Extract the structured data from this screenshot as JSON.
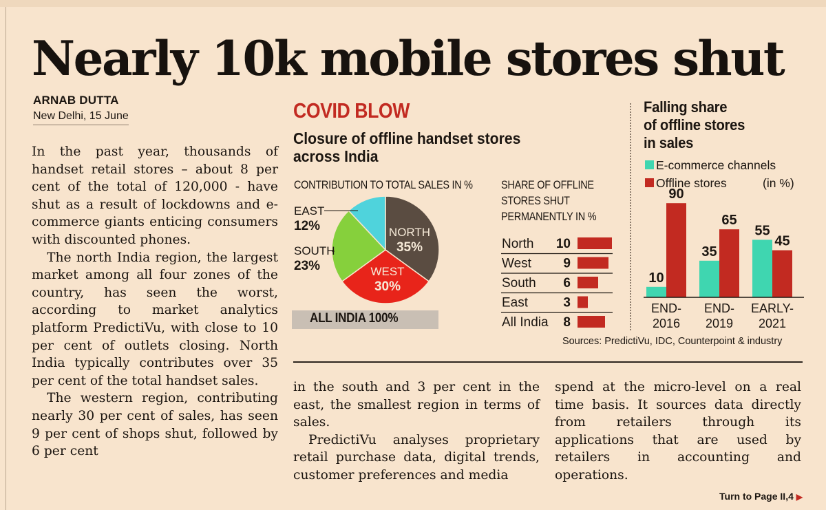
{
  "headline": "Nearly 10k mobile stores shut",
  "byline": {
    "author": "ARNAB DUTTA",
    "dateline": "New Delhi, 15 June"
  },
  "body": {
    "col1": [
      "In the past year, thousands of handset retail stores – about 8 per cent of the total of 120,000 - have shut as a result of  lockdowns and e-commerce giants enticing consumers with discounted phones.",
      "The north India region, the largest market among all four zones of the country, has seen the worst, according to market analytics platform PredictiVu, with close to 10 per cent of outlets closing. North India typically contributes over 35 per cent of the total handset sales.",
      "The western region, contributing nearly 30 per cent of sales, has seen 9 per cent of shops shut, followed by 6 per cent"
    ],
    "col2": [
      "in the south and 3 per cent in the east, the smallest region in terms of sales.",
      "PredictiVu analyses proprietary retail purchase data, digital trends, customer preferences and media"
    ],
    "col3": [
      "spend at the micro-level on a real time basis. It sources data directly from retailers through its applications that are used by retailers in accounting and operations."
    ],
    "turn": "Turn to Page II,4"
  },
  "graphic": {
    "title": "COVID BLOW",
    "subtitle": "Closure of offline handset stores across India",
    "pie_heading": "CONTRIBUTION TO TOTAL SALES IN %",
    "total_label": "ALL INDIA 100%",
    "bar_heading": [
      "SHARE OF OFFLINE",
      "STORES SHUT",
      "PERMANENTLY IN %"
    ],
    "col_title": [
      "Falling share",
      "of offline stores",
      "in sales"
    ],
    "unit": "(in %)",
    "source": "Sources: PredictiVu, IDC, Counterpoint & industry",
    "colors": {
      "red": "#c22a21",
      "teal": "#3fd6b0",
      "green": "#86d03c",
      "cyan": "#4fd3dc",
      "brown": "#5a4c41",
      "bright_red": "#e8241a"
    }
  },
  "chart_data": [
    {
      "type": "pie",
      "title": "CONTRIBUTION TO TOTAL SALES IN %",
      "slices": [
        {
          "name": "NORTH",
          "value": 35,
          "label": "35%",
          "color": "#5a4c41"
        },
        {
          "name": "WEST",
          "value": 30,
          "label": "30%",
          "color": "#e8241a"
        },
        {
          "name": "SOUTH",
          "value": 23,
          "label": "23%",
          "color": "#86d03c"
        },
        {
          "name": "EAST",
          "value": 12,
          "label": "12%",
          "color": "#4fd3dc"
        }
      ]
    },
    {
      "type": "bar",
      "title": "SHARE OF OFFLINE STORES SHUT PERMANENTLY IN %",
      "categories": [
        "North",
        "West",
        "South",
        "East",
        "All India"
      ],
      "values": [
        10,
        9,
        6,
        3,
        8
      ],
      "color": "#c22a21"
    },
    {
      "type": "bar",
      "title": "Falling share of offline stores in sales",
      "categories": [
        "END-2016",
        "END-2019",
        "EARLY-2021"
      ],
      "series": [
        {
          "name": "E-commerce channels",
          "values": [
            10,
            35,
            55
          ],
          "color": "#3fd6b0"
        },
        {
          "name": "Offline stores",
          "values": [
            90,
            65,
            45
          ],
          "color": "#c22a21"
        }
      ],
      "unit": "(in %)"
    }
  ]
}
